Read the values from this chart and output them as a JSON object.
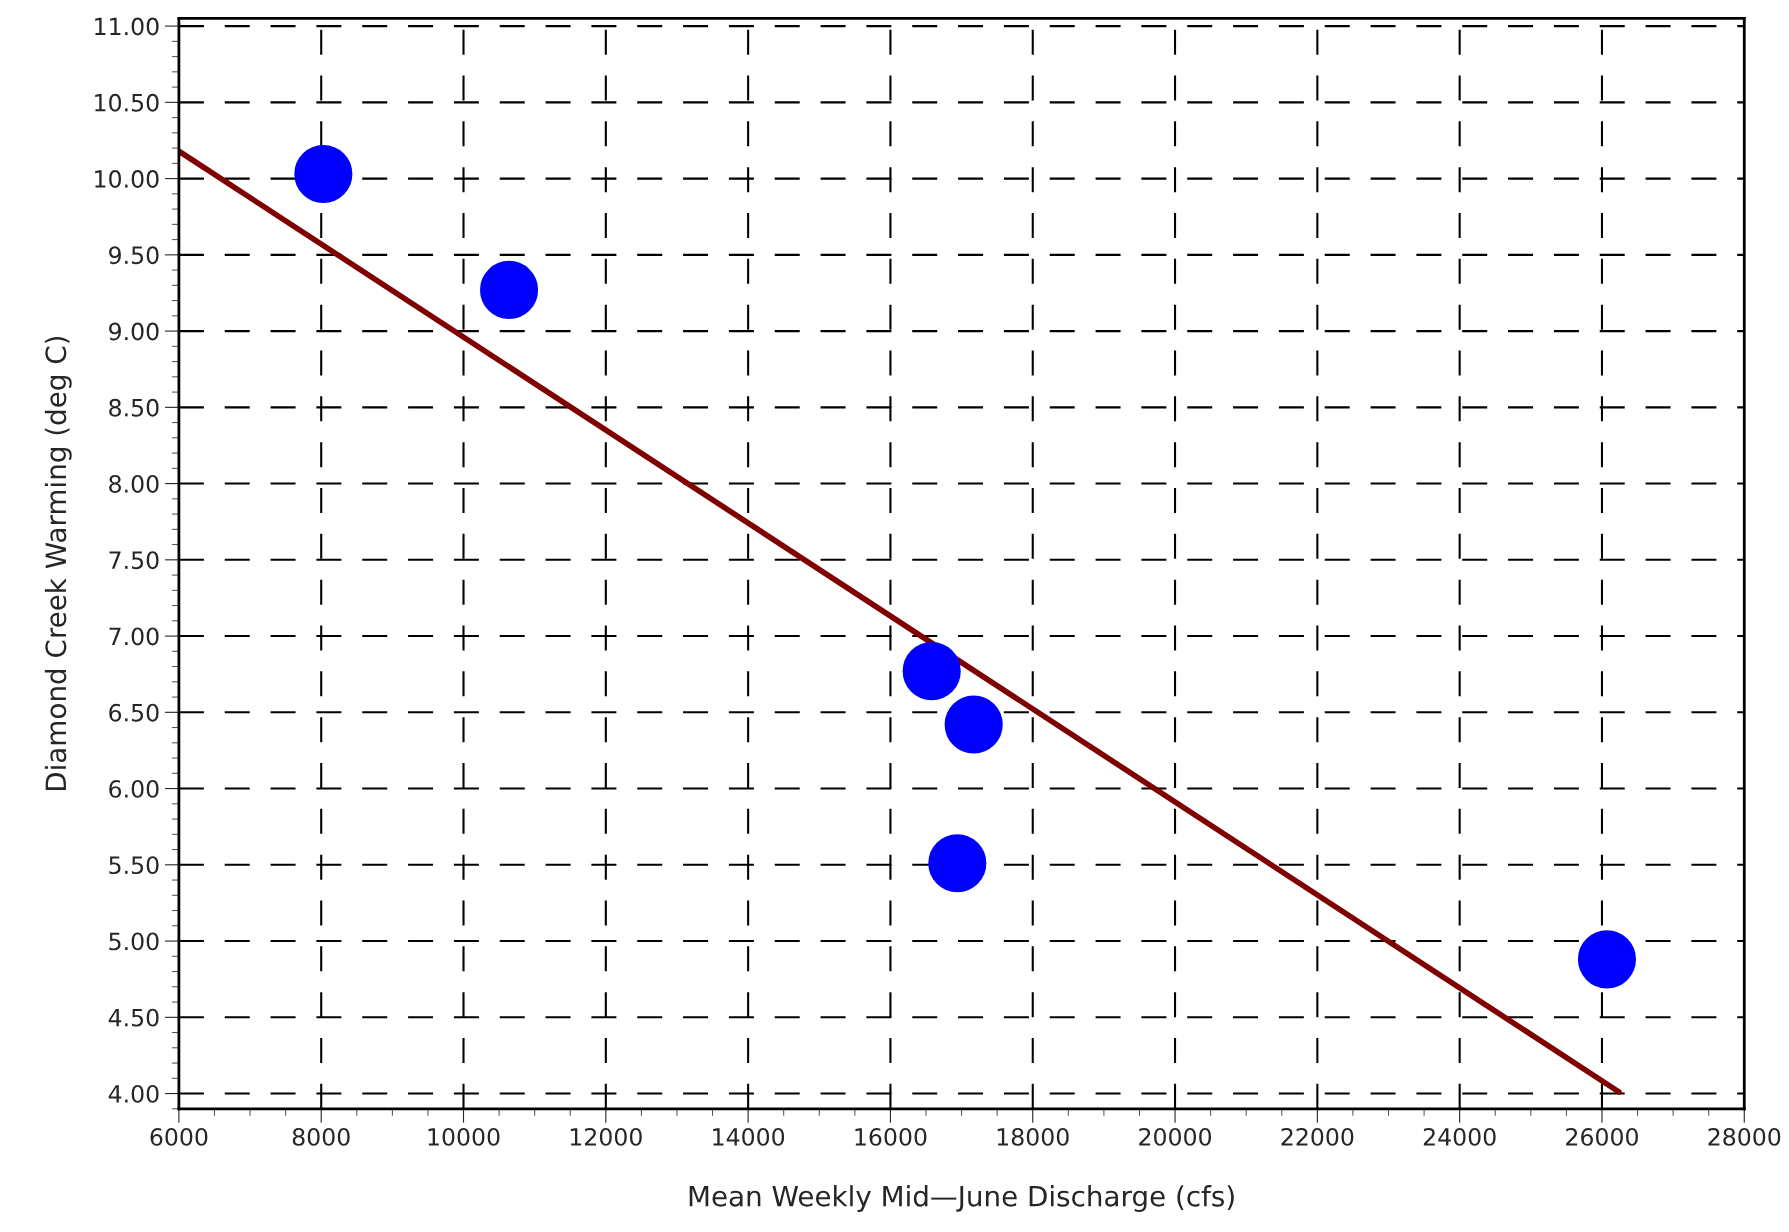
{
  "chart_data": {
    "type": "scatter",
    "xlabel": "Mean Weekly Mid—June Discharge (cfs)",
    "ylabel": "Diamond Creek Warming (deg C)",
    "series": [
      {
        "color": "#0000ff",
        "marker": "circle",
        "x": [
          8030,
          10640,
          16580,
          17170,
          16940,
          26070
        ],
        "values": [
          10.03,
          9.27,
          6.77,
          6.42,
          5.51,
          4.88
        ]
      },
      {
        "type": "line",
        "color": "#800000",
        "marker": "none",
        "line_style": "solid",
        "x": [
          6000,
          26240
        ],
        "values": [
          10.18,
          4.01
        ]
      }
    ],
    "xlim": [
      6000,
      28000
    ],
    "ylim": [
      3.9,
      11.05
    ],
    "xticks": [
      6000,
      8000,
      10000,
      12000,
      14000,
      16000,
      18000,
      20000,
      22000,
      24000,
      26000,
      28000
    ],
    "yticks": [
      {
        "value": 4,
        "label": "4.00"
      },
      {
        "value": 4.5,
        "label": "4.50"
      },
      {
        "value": 5,
        "label": "5.00"
      },
      {
        "value": 5.5,
        "label": "5.50"
      },
      {
        "value": 6,
        "label": "6.00"
      },
      {
        "value": 6.5,
        "label": "6.50"
      },
      {
        "value": 7,
        "label": "7.00"
      },
      {
        "value": 7.5,
        "label": "7.50"
      },
      {
        "value": 8,
        "label": "8.00"
      },
      {
        "value": 8.5,
        "label": "8.50"
      },
      {
        "value": 9,
        "label": "9.00"
      },
      {
        "value": 9.5,
        "label": "9.50"
      },
      {
        "value": 10,
        "label": "10.00"
      },
      {
        "value": 10.5,
        "label": "10.50"
      },
      {
        "value": 11,
        "label": "11.00"
      }
    ],
    "grid": true
  }
}
